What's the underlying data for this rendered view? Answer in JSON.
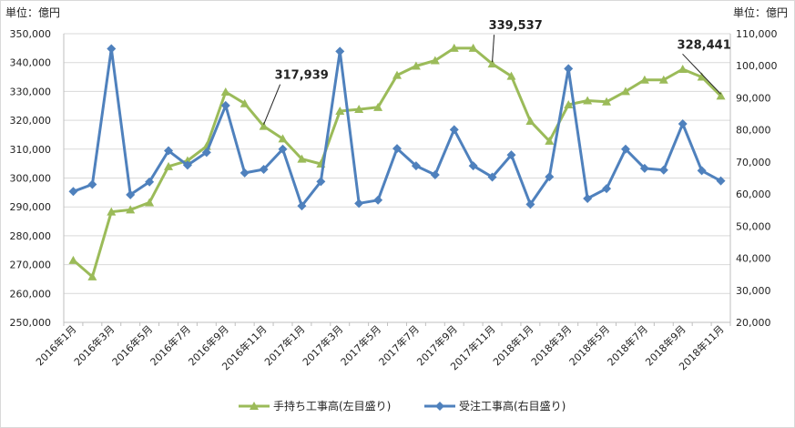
{
  "chart_data": {
    "type": "line",
    "left_axis_unit": "単位：億円",
    "right_axis_unit": "単位：億円",
    "y_left": {
      "min": 250000,
      "max": 350000,
      "step": 10000
    },
    "y_right": {
      "min": 20000,
      "max": 110000,
      "step": 10000
    },
    "y_left_ticks": [
      "250,000",
      "260,000",
      "270,000",
      "280,000",
      "290,000",
      "300,000",
      "310,000",
      "320,000",
      "330,000",
      "340,000",
      "350,000"
    ],
    "y_right_ticks": [
      "20,000",
      "30,000",
      "40,000",
      "50,000",
      "60,000",
      "70,000",
      "80,000",
      "90,000",
      "100,000",
      "110,000"
    ],
    "x_labels": [
      "2016年1月",
      "2016年3月",
      "2016年5月",
      "2016年7月",
      "2016年9月",
      "2016年11月",
      "2017年1月",
      "2017年3月",
      "2017年5月",
      "2017年7月",
      "2017年9月",
      "2017年11月",
      "2018年1月",
      "2018年3月",
      "2018年5月",
      "2018年7月",
      "2018年9月",
      "2018年11月"
    ],
    "months": [
      "2016-01",
      "2016-02",
      "2016-03",
      "2016-04",
      "2016-05",
      "2016-06",
      "2016-07",
      "2016-08",
      "2016-09",
      "2016-10",
      "2016-11",
      "2016-12",
      "2017-01",
      "2017-02",
      "2017-03",
      "2017-04",
      "2017-05",
      "2017-06",
      "2017-07",
      "2017-08",
      "2017-09",
      "2017-10",
      "2017-11",
      "2017-12",
      "2018-01",
      "2018-02",
      "2018-03",
      "2018-04",
      "2018-05",
      "2018-06",
      "2018-07",
      "2018-08",
      "2018-09",
      "2018-10",
      "2018-11"
    ],
    "series": [
      {
        "name": "手持ち工事高(左目盛り)",
        "axis": "left",
        "color": "#9bbb59",
        "marker": "triangle",
        "values": [
          271500,
          265800,
          288300,
          289000,
          291500,
          304000,
          306000,
          311000,
          329800,
          325800,
          317939,
          313600,
          306600,
          304900,
          323200,
          323800,
          324500,
          335600,
          338800,
          340700,
          345000,
          345000,
          339537,
          335300,
          319700,
          312800,
          325400,
          326800,
          326400,
          330000,
          334000,
          334000,
          337700,
          335000,
          328441
        ]
      },
      {
        "name": "受注工事高(右目盛り)",
        "axis": "right",
        "color": "#4f81bd",
        "marker": "diamond",
        "values": [
          60800,
          63000,
          105300,
          59800,
          63800,
          73500,
          69000,
          73000,
          87600,
          66600,
          67700,
          74000,
          56300,
          63900,
          104500,
          57100,
          58100,
          74200,
          68800,
          66000,
          80100,
          68800,
          65300,
          72200,
          56800,
          65400,
          99100,
          58600,
          61700,
          74000,
          68000,
          67500,
          81900,
          67300,
          64100
        ]
      }
    ],
    "annotations": [
      {
        "text": "317,939",
        "series": 0,
        "index": 10
      },
      {
        "text": "339,537",
        "series": 0,
        "index": 22
      },
      {
        "text": "328,441",
        "series": 0,
        "index": 34
      }
    ],
    "grid": true,
    "legend_position": "bottom"
  }
}
